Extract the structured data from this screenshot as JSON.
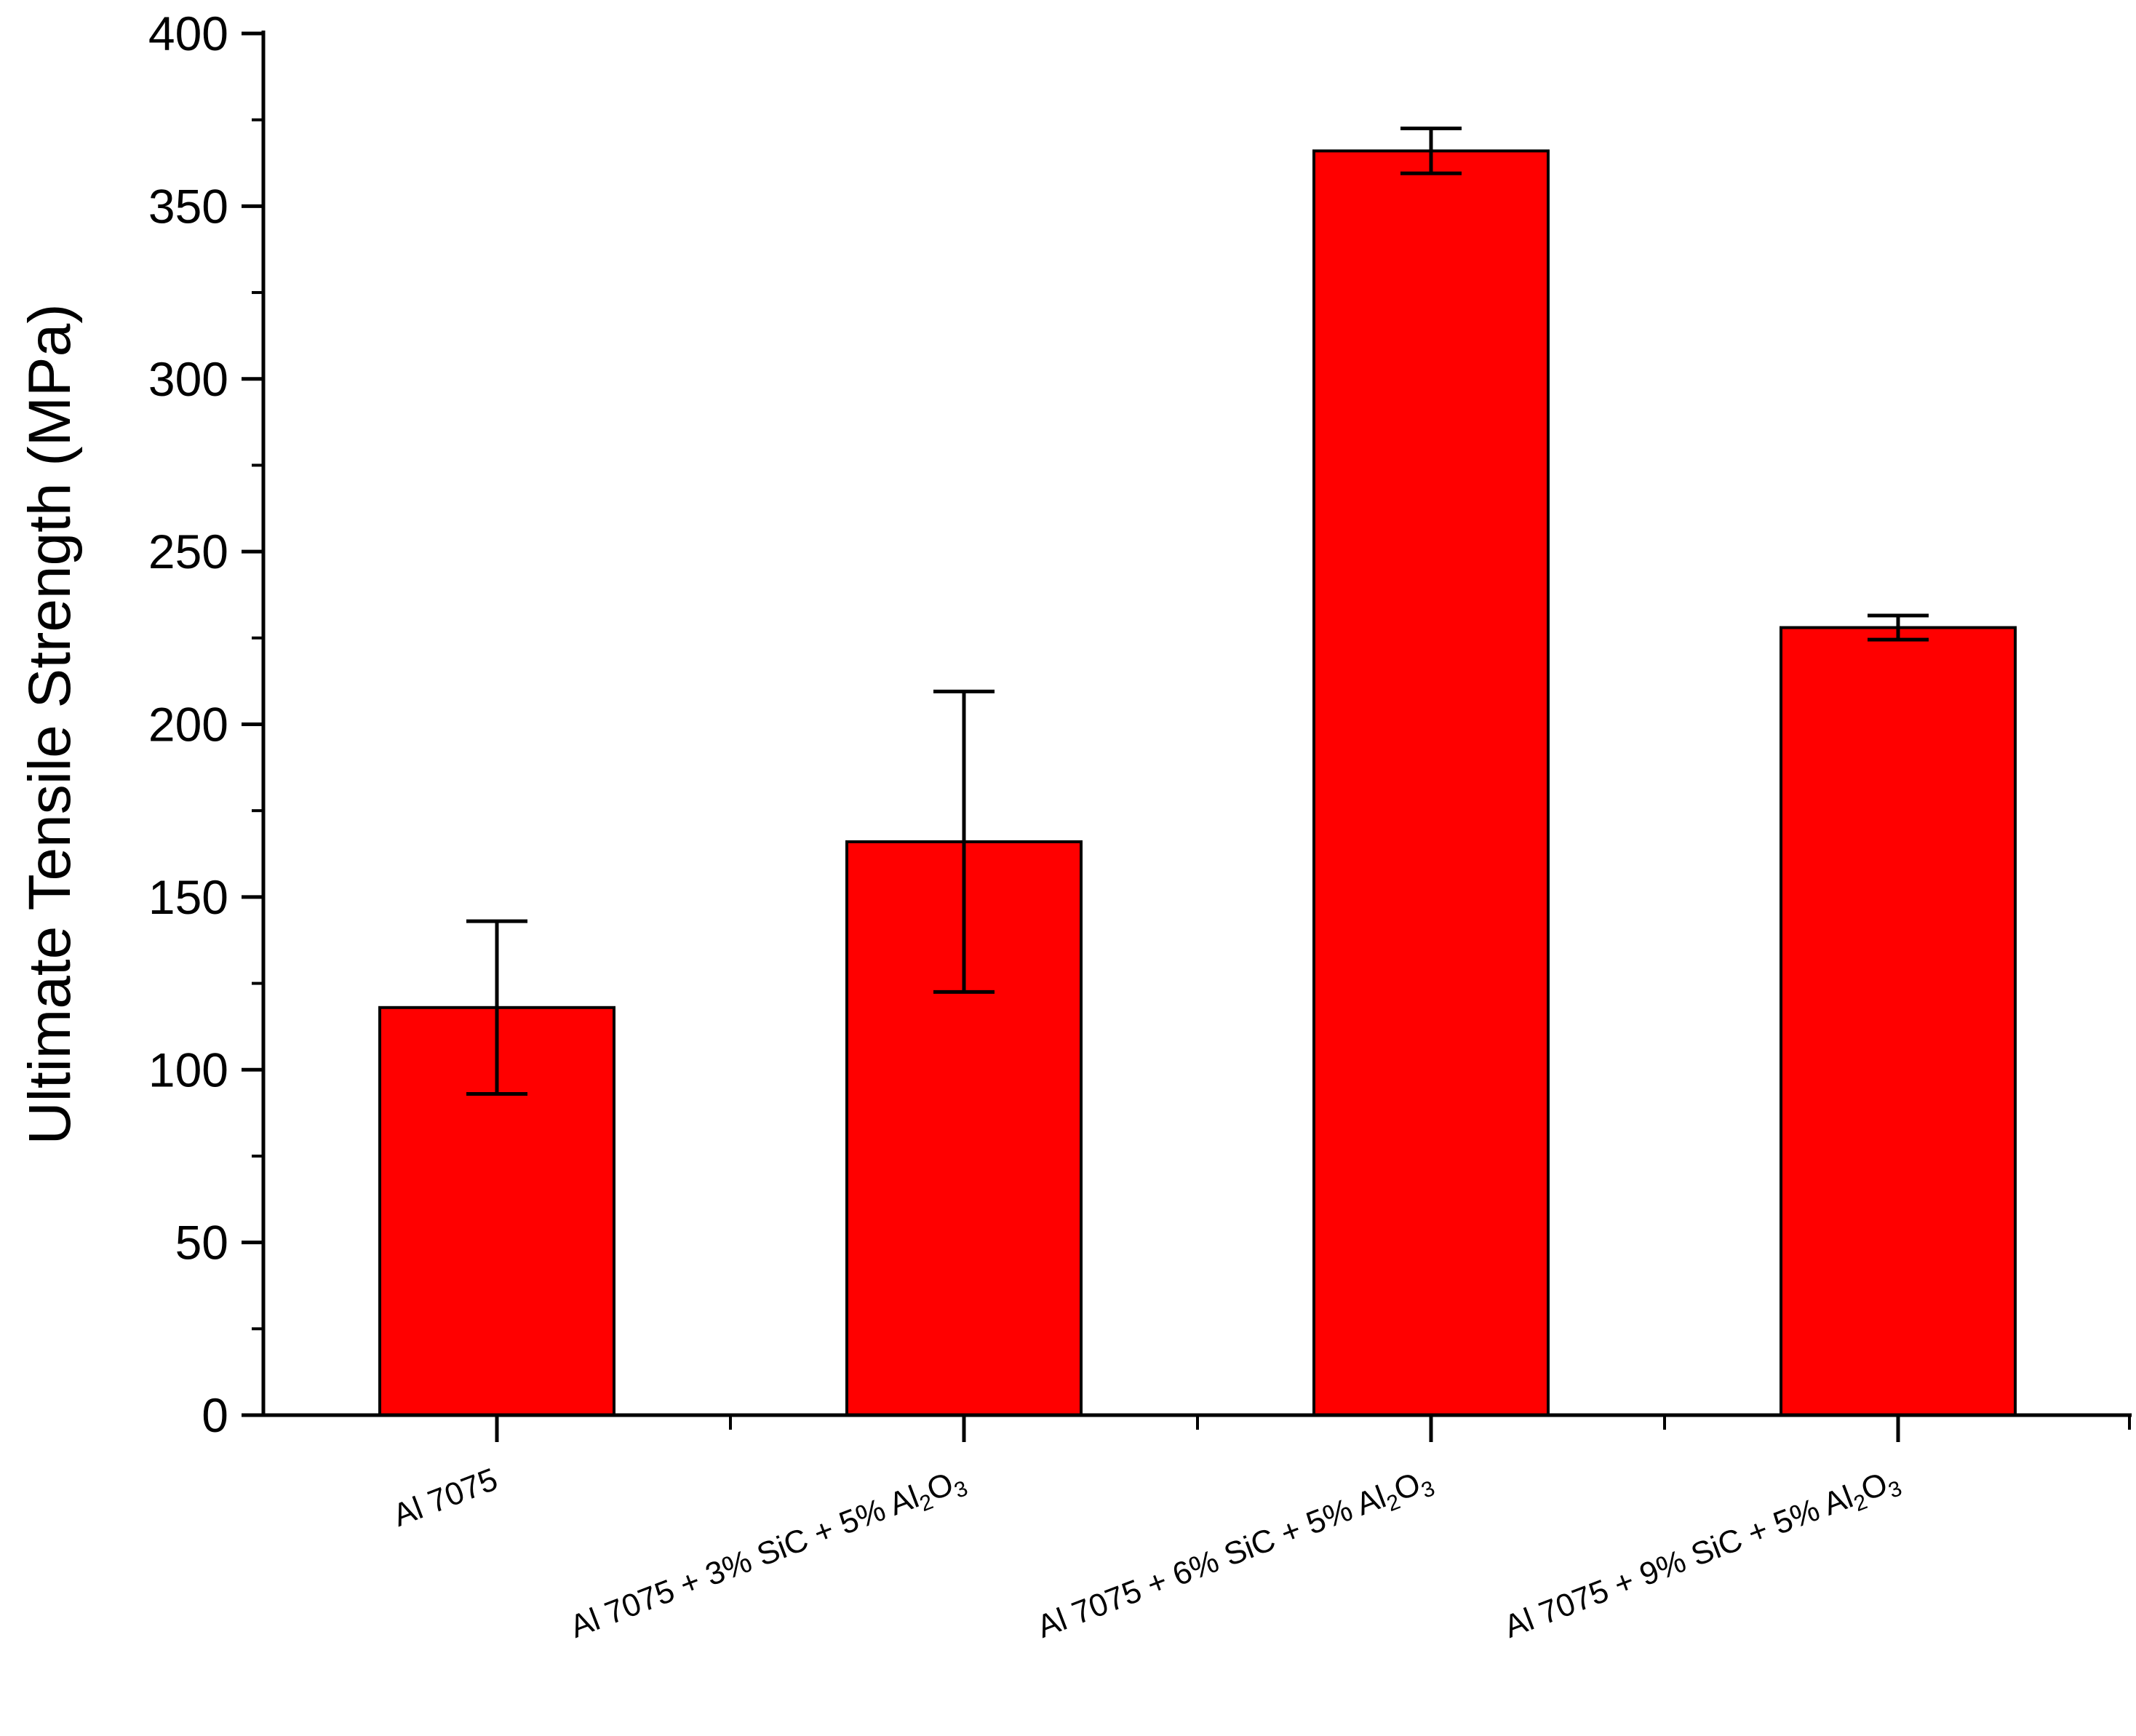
{
  "chart_data": {
    "type": "bar",
    "ylabel": "Ultimate Tensile Strength (MPa)",
    "ylim": [
      0,
      400
    ],
    "yticks": [
      0,
      50,
      100,
      150,
      200,
      250,
      300,
      350,
      400
    ],
    "grid": false,
    "legend": "none",
    "bar_color": "#ff0000",
    "categories": [
      {
        "label": "Al 7075",
        "parts": [
          {
            "t": "Al 7075"
          }
        ]
      },
      {
        "label": "Al 7075 + 3% SiC + 5% Al2O3",
        "parts": [
          {
            "t": "Al 7075 + 3% SiC + 5% Al"
          },
          {
            "t": "2",
            "sub": true
          },
          {
            "t": "O"
          },
          {
            "t": "3",
            "sub": true
          }
        ]
      },
      {
        "label": "Al 7075 + 6% SiC + 5% Al2O3",
        "parts": [
          {
            "t": "Al 7075 + 6% SiC + 5% Al"
          },
          {
            "t": "2",
            "sub": true
          },
          {
            "t": "O"
          },
          {
            "t": "3",
            "sub": true
          }
        ]
      },
      {
        "label": "Al 7075 + 9% SiC + 5% Al2O3",
        "parts": [
          {
            "t": "Al 7075 + 9% SiC + 5% Al"
          },
          {
            "t": "2",
            "sub": true
          },
          {
            "t": "O"
          },
          {
            "t": "3",
            "sub": true
          }
        ]
      }
    ],
    "values": [
      118,
      166,
      366,
      228
    ],
    "error": [
      25,
      43.5,
      6.5,
      3.5
    ]
  }
}
